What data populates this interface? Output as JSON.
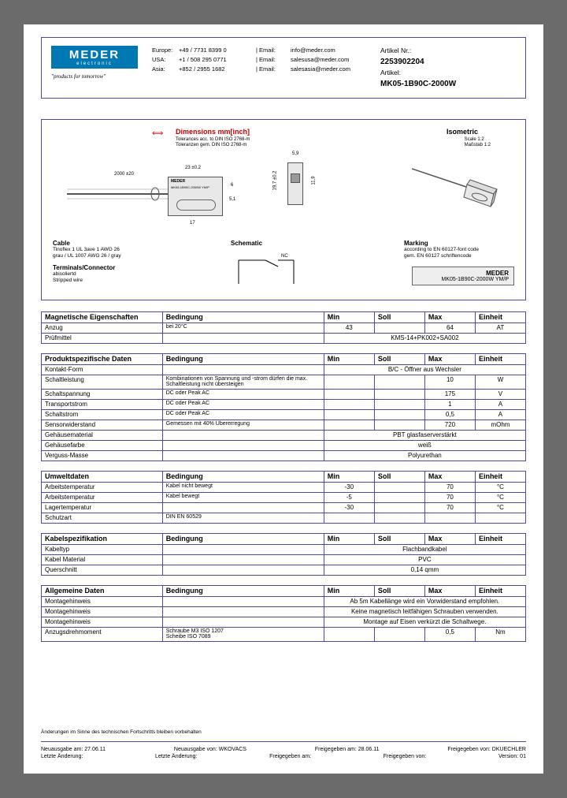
{
  "header": {
    "logo_main": "MEDER",
    "logo_sub": "electronic",
    "tagline": "\"products for tomorrow\"",
    "contacts": {
      "regions": [
        "Europe:",
        "USA:",
        "Asia:"
      ],
      "phones": [
        "+49 / 7731 8399 0",
        "+1 / 508 295 0771",
        "+852 / 2955 1682"
      ],
      "email_labels": [
        "| Email:",
        "| Email:",
        "| Email:"
      ],
      "emails": [
        "info@meder.com",
        "salesusa@meder.com",
        "salesasia@meder.com"
      ]
    },
    "article_nr_label": "Artikel Nr.:",
    "article_nr": "2253902204",
    "article_label": "Artikel:",
    "article": "MK05-1B90C-2000W"
  },
  "diagram": {
    "dim_title": "Dimensions mm[inch]",
    "dim_sub1": "Tolerances acc. to DIN ISO 2768-m",
    "dim_sub2": "Toleranzen gem. DIN ISO 2768-m",
    "iso_title": "Isometric",
    "iso_sub1": "Scale 1:2",
    "iso_sub2": "Maßstab 1:2",
    "dim_2000": "2000 ±20",
    "dim_23": "23 ±0.2",
    "dim_59": "5,9",
    "dim_51": "5,1",
    "dim_6": "6",
    "dim_17": "17",
    "dim_197": "19,7 ±0.2",
    "dim_119": "11,9",
    "part_text1": "MEDER",
    "part_text2": "MK05-1B90C-2000W YM/P",
    "cable_h": "Cable",
    "cable_1": "Tinoflex 1 UL 3ave 1 AWG 26",
    "cable_2": "grau / UL 1007 AWG 26 / gray",
    "term_h": "Terminals/Connector",
    "term_1": "abisoliertd",
    "term_2": "Stripped wire",
    "schematic_h": "Schematic",
    "schematic_nc": "NC",
    "marking_h": "Marking",
    "marking_1": "according to EN 60127-font code",
    "marking_2": "gem. EN 60127 schriftencode",
    "chip_brand": "MEDER",
    "chip_part": "MK05-1B90C-2000W  YM/P"
  },
  "tables": [
    {
      "title": "Magnetische Eigenschaften",
      "rows": [
        {
          "lab": "Anzug",
          "cond": "bei 20°C",
          "min": "43",
          "soll": "",
          "max": "64",
          "unit": "AT"
        },
        {
          "lab": "Prüfmittel",
          "cond": "",
          "span": "KMS-14+PK002+SA002"
        }
      ]
    },
    {
      "title": "Produktspezifische Daten",
      "rows": [
        {
          "lab": "Kontakt-Form",
          "cond": "",
          "span": "B/C - Öffner aus Wechsler"
        },
        {
          "lab": "Schaltleistung",
          "cond": "Kombinationen von Spannung und -strom dürfen die max. Schaltleistung nicht übersteigen",
          "min": "",
          "soll": "",
          "max": "10",
          "unit": "W"
        },
        {
          "lab": "Schaltspannung",
          "cond": "DC oder Peak AC",
          "min": "",
          "soll": "",
          "max": "175",
          "unit": "V"
        },
        {
          "lab": "Transportstrom",
          "cond": "DC oder Peak AC",
          "min": "",
          "soll": "",
          "max": "1",
          "unit": "A"
        },
        {
          "lab": "Schaltstrom",
          "cond": "DC oder Peak AC",
          "min": "",
          "soll": "",
          "max": "0,5",
          "unit": "A"
        },
        {
          "lab": "Sensorwiderstand",
          "cond": "Gemessen mit 40% Übererregung",
          "min": "",
          "soll": "",
          "max": "720",
          "unit": "mOhm"
        },
        {
          "lab": "Gehäusematerial",
          "cond": "",
          "span": "PBT glasfaserverstärkt"
        },
        {
          "lab": "Gehäusefarbe",
          "cond": "",
          "span": "weiß"
        },
        {
          "lab": "Verguss-Masse",
          "cond": "",
          "span": "Polyurethan"
        }
      ]
    },
    {
      "title": "Umweltdaten",
      "rows": [
        {
          "lab": "Arbeitstemperatur",
          "cond": "Kabel nicht bewegt",
          "min": "-30",
          "soll": "",
          "max": "70",
          "unit": "°C"
        },
        {
          "lab": "Arbeitstemperatur",
          "cond": "Kabel bewegt",
          "min": "-5",
          "soll": "",
          "max": "70",
          "unit": "°C"
        },
        {
          "lab": "Lagertemperatur",
          "cond": "",
          "min": "-30",
          "soll": "",
          "max": "70",
          "unit": "°C"
        },
        {
          "lab": "Schutzart",
          "cond": "DIN EN 60529",
          "min": "",
          "soll": "",
          "max": "",
          "unit": ""
        }
      ]
    },
    {
      "title": "Kabelspezifikation",
      "rows": [
        {
          "lab": "Kabeltyp",
          "cond": "",
          "span": "Flachbandkabel"
        },
        {
          "lab": "Kabel Material",
          "cond": "",
          "span": "PVC"
        },
        {
          "lab": "Querschnitt",
          "cond": "",
          "span": "0,14 qmm"
        }
      ]
    },
    {
      "title": "Allgemeine Daten",
      "rows": [
        {
          "lab": "Montagehinweis",
          "cond": "",
          "span": "Ab 5m Kabellänge wird ein Vorwiderstand empfohlen."
        },
        {
          "lab": "Montagehinweis",
          "cond": "",
          "span": "Keine magnetisch leitfähigen Schrauben verwenden."
        },
        {
          "lab": "Montagehinweis",
          "cond": "",
          "span": "Montage auf Eisen verkürzt die Schaltwege."
        },
        {
          "lab": "Anzugsdrehmoment",
          "cond": "Schraube M3 ISO 1207\nScheibe ISO 7089",
          "min": "",
          "soll": "",
          "max": "0,5",
          "unit": "Nm"
        }
      ]
    }
  ],
  "table_headers": {
    "cond": "Bedingung",
    "min": "Min",
    "soll": "Soll",
    "max": "Max",
    "unit": "Einheit"
  },
  "footer": {
    "note": "Änderungen im Sinne des technischen Fortschritts bleiben vorbehalten",
    "row1": {
      "a": "Neuausgabe am:   27.06.11",
      "b": "Neuausgabe von:     WKOVACS",
      "c": "Freigegeben am:   28.06.11",
      "d": "Freigegeben von:     DKUECHLER"
    },
    "row2": {
      "a": "Letzte Änderung:",
      "b": "Letzte Änderung:",
      "c": "Freigegeben am:",
      "d": "Freigegeben von:",
      "e": "Version:     01"
    }
  }
}
